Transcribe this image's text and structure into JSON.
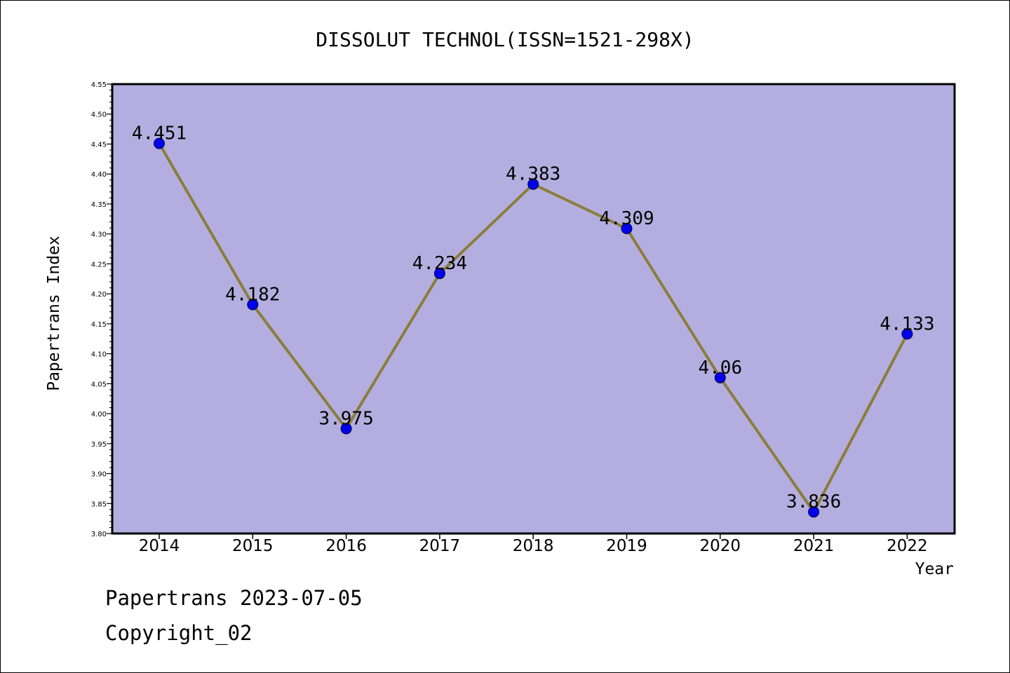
{
  "chart_data": {
    "type": "line",
    "title": "DISSOLUT TECHNOL(ISSN=1521-298X)",
    "xlabel": "Year",
    "ylabel": "Papertrans Index",
    "categories": [
      "2014",
      "2015",
      "2016",
      "2017",
      "2018",
      "2019",
      "2020",
      "2021",
      "2022"
    ],
    "series": [
      {
        "values": [
          4.451,
          4.182,
          3.975,
          4.234,
          4.383,
          4.309,
          4.06,
          3.836,
          4.133
        ],
        "data_labels": [
          "4.451",
          "4.182",
          "3.975",
          "4.234",
          "4.383",
          "4.309",
          "4.06",
          "3.836",
          "4.133"
        ],
        "line_color": "#8b7d3a",
        "marker_color": "#0000ee"
      }
    ],
    "ylim": [
      3.8,
      4.55
    ],
    "yticks": [
      "3.80",
      "3.85",
      "3.90",
      "3.95",
      "4.00",
      "4.05",
      "4.10",
      "4.15",
      "4.20",
      "4.25",
      "4.30",
      "4.35",
      "4.40",
      "4.45",
      "4.50",
      "4.55"
    ],
    "grid": false,
    "plot_background": "#b4aee0"
  },
  "footer": {
    "date_line": "Papertrans 2023-07-05",
    "copyright_line": "Copyright_02"
  }
}
